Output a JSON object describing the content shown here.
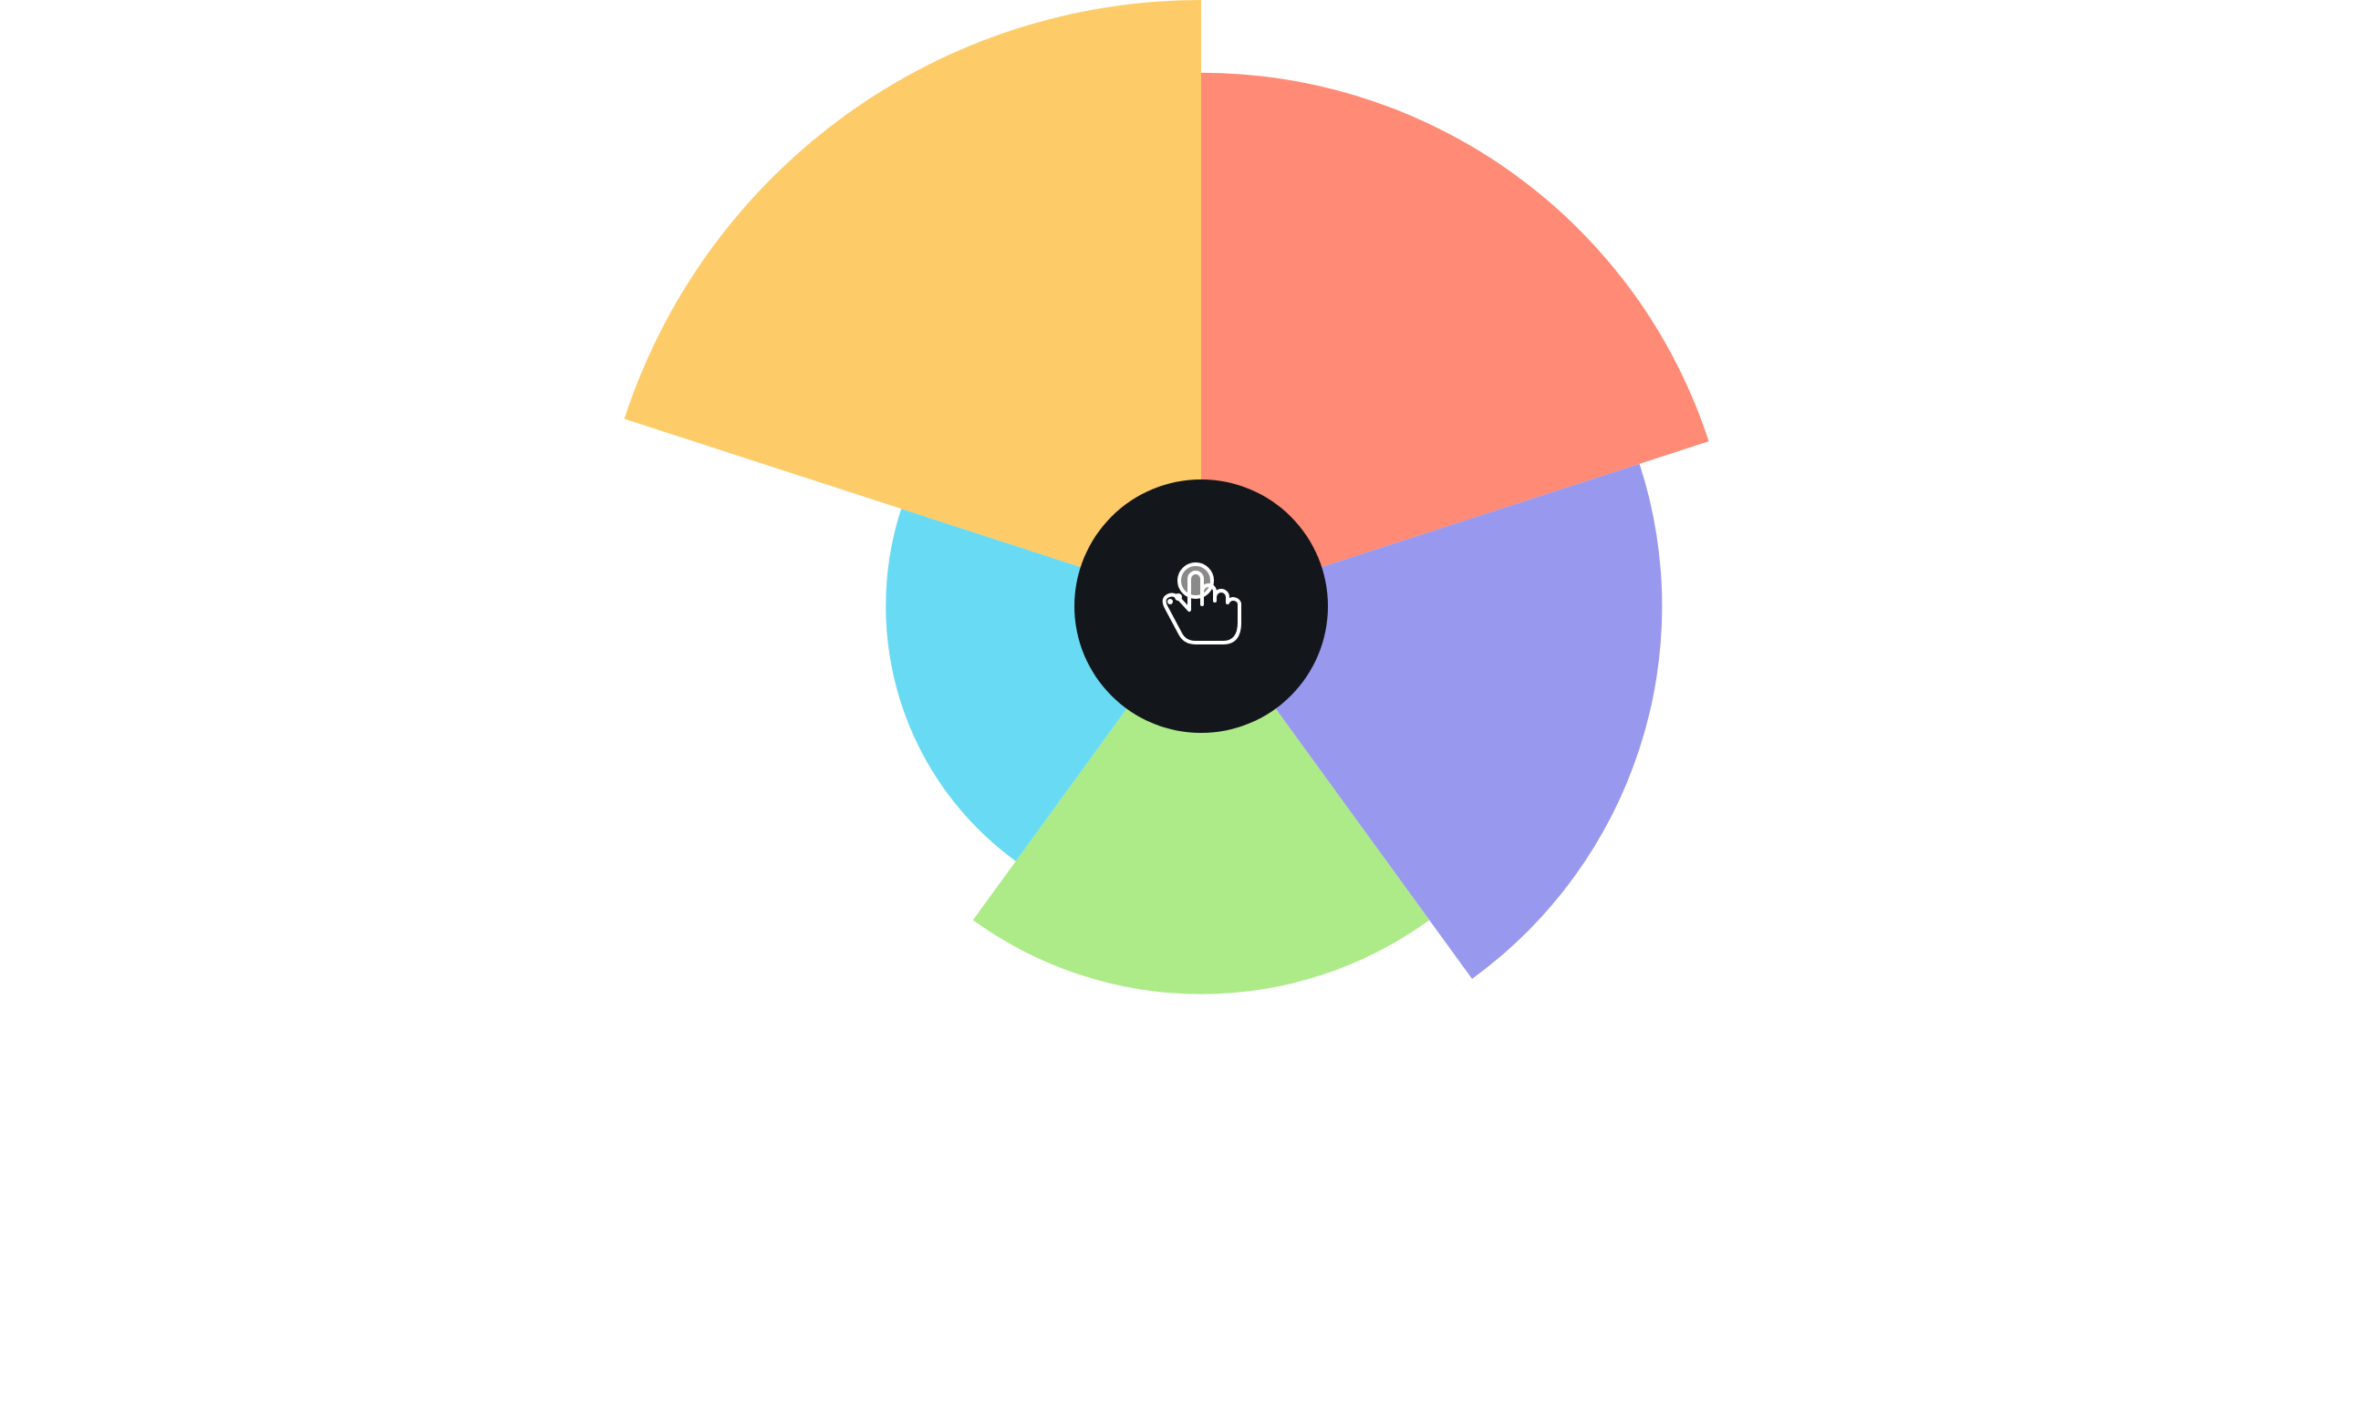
{
  "chart_data": {
    "type": "polar-area",
    "start_angle_deg": -90,
    "direction": "clockwise",
    "grid": false,
    "legend": "none",
    "max_value": 100,
    "series": [
      {
        "values": [
          88,
          76,
          64,
          52,
          100
        ],
        "colors": [
          "#FF8A75",
          "#9899EE",
          "#ACEB87",
          "#69DAF3",
          "#FDCC69"
        ]
      }
    ]
  },
  "center_button": {
    "icon": "tap-hand-icon",
    "background": "#13161B",
    "icon_color": "#FFFFFF",
    "accent": "#8A8A8A"
  }
}
